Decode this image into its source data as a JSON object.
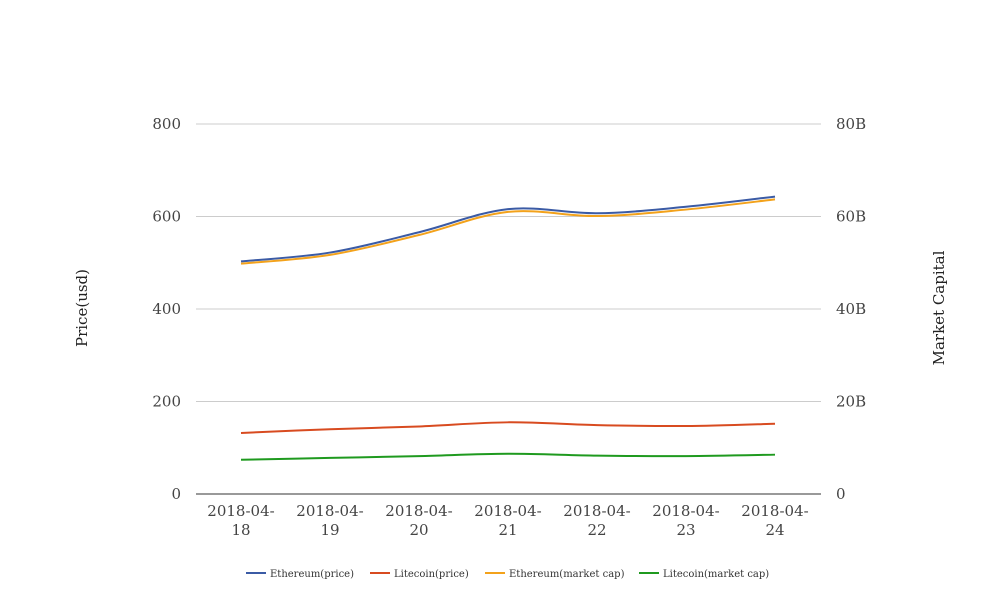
{
  "chart_data": {
    "type": "line",
    "title": "",
    "categories": [
      "2018-04-18",
      "2018-04-19",
      "2018-04-20",
      "2018-04-21",
      "2018-04-22",
      "2018-04-23",
      "2018-04-24"
    ],
    "category_label_lines": [
      [
        "2018-04-",
        "18"
      ],
      [
        "2018-04-",
        "19"
      ],
      [
        "2018-04-",
        "20"
      ],
      [
        "2018-04-",
        "21"
      ],
      [
        "2018-04-",
        "22"
      ],
      [
        "2018-04-",
        "23"
      ],
      [
        "2018-04-",
        "24"
      ]
    ],
    "ylabel": "Price(usd)",
    "y2label": "Market Capital",
    "ylim": [
      0,
      800
    ],
    "y2lim": [
      0,
      80000000000
    ],
    "y_ticks": [
      0,
      200,
      400,
      600,
      800
    ],
    "y2_ticks": [
      "0",
      "20B",
      "40B",
      "60B",
      "80B"
    ],
    "grid": true,
    "legend": "bottom",
    "series": [
      {
        "name": "Ethereum(price)",
        "axis": "left",
        "color": "#3b5ba5",
        "values": [
          503,
          522,
          566,
          616,
          607,
          621,
          643
        ]
      },
      {
        "name": "Litecoin(price)",
        "axis": "left",
        "color": "#d84b20",
        "values": [
          132,
          140,
          146,
          155,
          149,
          147,
          152
        ]
      },
      {
        "name": "Ethereum(market cap)",
        "axis": "right",
        "color": "#f3a21b",
        "values": [
          49800000000,
          51700000000,
          56000000000,
          61000000000,
          60100000000,
          61500000000,
          63700000000
        ]
      },
      {
        "name": "Litecoin(market cap)",
        "axis": "right",
        "color": "#1f9a1f",
        "values": [
          7400000000,
          7800000000,
          8200000000,
          8700000000,
          8300000000,
          8200000000,
          8500000000
        ]
      }
    ]
  }
}
